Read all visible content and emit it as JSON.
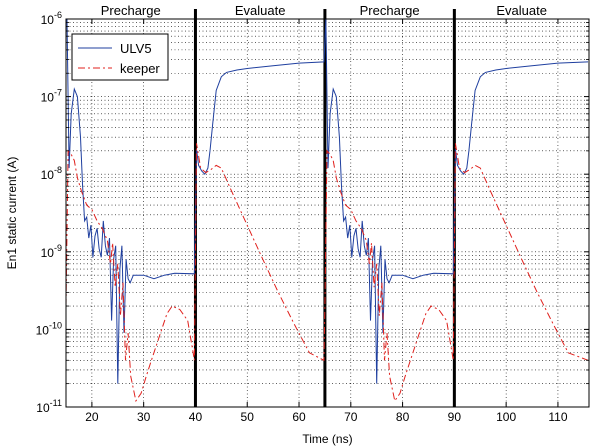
{
  "chart_data": {
    "type": "line",
    "xlabel": "Time (ns)",
    "ylabel": "En1   static current (A)",
    "xlim": [
      15,
      116
    ],
    "ylim": [
      1e-11,
      1e-06
    ],
    "yscale": "log",
    "grid": true,
    "legend_position": "top-left",
    "x_ticks": [
      20,
      30,
      40,
      50,
      60,
      70,
      80,
      90,
      100,
      110
    ],
    "y_ticks": [
      {
        "value": 1e-11,
        "base": "10",
        "exp": "-11"
      },
      {
        "value": 1e-10,
        "base": "10",
        "exp": "-10"
      },
      {
        "value": 1e-09,
        "base": "10",
        "exp": "-9"
      },
      {
        "value": 1e-08,
        "base": "10",
        "exp": "-8"
      },
      {
        "value": 1e-07,
        "base": "10",
        "exp": "-7"
      },
      {
        "value": 1e-06,
        "base": "10",
        "exp": "-6"
      }
    ],
    "phase_boundaries": [
      40,
      65,
      90
    ],
    "phases": [
      {
        "label": "Precharge",
        "x": 27.5
      },
      {
        "label": "Evaluate",
        "x": 52.5
      },
      {
        "label": "Precharge",
        "x": 77.5
      },
      {
        "label": "Evaluate",
        "x": 103
      }
    ],
    "series": [
      {
        "name": "ULV5",
        "color": "#1f3f9f",
        "style": "solid",
        "points": [
          [
            15.2,
            1e-06
          ],
          [
            15.6,
            1.2e-08
          ],
          [
            16.0,
            6e-08
          ],
          [
            16.6,
            1.25e-07
          ],
          [
            17.2,
            1e-07
          ],
          [
            17.8,
            3e-08
          ],
          [
            18.2,
            7e-09
          ],
          [
            18.6,
            2.5e-09
          ],
          [
            19.0,
            2.8e-09
          ],
          [
            19.4,
            1.5e-09
          ],
          [
            19.8,
            2.2e-09
          ],
          [
            20.2,
            8.5e-10
          ],
          [
            20.6,
            1.6e-09
          ],
          [
            21.0,
            2e-09
          ],
          [
            21.4,
            1.1e-09
          ],
          [
            21.8,
            8.5e-10
          ],
          [
            22.2,
            2.5e-09
          ],
          [
            22.6,
            1.2e-09
          ],
          [
            23.0,
            9e-10
          ],
          [
            23.4,
            1.5e-09
          ],
          [
            23.8,
            1.3e-10
          ],
          [
            24.2,
            8e-10
          ],
          [
            24.6,
            1.2e-09
          ],
          [
            25.0,
            2e-11
          ],
          [
            25.4,
            6e-10
          ],
          [
            25.8,
            1.2e-09
          ],
          [
            26.2,
            9e-11
          ],
          [
            26.6,
            8e-10
          ],
          [
            27.0,
            4.5e-10
          ],
          [
            27.4,
            4e-10
          ],
          [
            28.0,
            5e-10
          ],
          [
            30.0,
            5e-10
          ],
          [
            32.0,
            4.5e-10
          ],
          [
            34.0,
            5e-10
          ],
          [
            36.0,
            5.3e-10
          ],
          [
            39.8,
            5.2e-10
          ],
          [
            40.2,
            2.1e-08
          ],
          [
            40.6,
            1.3e-08
          ],
          [
            41.2,
            1.1e-08
          ],
          [
            41.8,
            1e-08
          ],
          [
            42.4,
            1.2e-08
          ],
          [
            42.8,
            2e-08
          ],
          [
            43.4,
            5e-08
          ],
          [
            44.0,
            1.2e-07
          ],
          [
            45.0,
            1.8e-07
          ],
          [
            46.0,
            2.05e-07
          ],
          [
            48.0,
            2.2e-07
          ],
          [
            50.0,
            2.3e-07
          ],
          [
            55.0,
            2.5e-07
          ],
          [
            60.0,
            2.7e-07
          ],
          [
            64.8,
            2.8e-07
          ],
          [
            65.2,
            1e-06
          ],
          [
            65.6,
            1.2e-08
          ],
          [
            66.0,
            6e-08
          ],
          [
            66.6,
            1.25e-07
          ],
          [
            67.2,
            1e-07
          ],
          [
            67.8,
            3e-08
          ],
          [
            68.2,
            7e-09
          ],
          [
            68.6,
            2.5e-09
          ],
          [
            69.0,
            2.8e-09
          ],
          [
            69.4,
            1.5e-09
          ],
          [
            69.8,
            2.2e-09
          ],
          [
            70.2,
            8.5e-10
          ],
          [
            70.6,
            1.6e-09
          ],
          [
            71.0,
            2e-09
          ],
          [
            71.4,
            1.1e-09
          ],
          [
            71.8,
            8.5e-10
          ],
          [
            72.2,
            2.5e-09
          ],
          [
            72.6,
            1.2e-09
          ],
          [
            73.0,
            9e-10
          ],
          [
            73.4,
            1.5e-09
          ],
          [
            73.8,
            1.3e-10
          ],
          [
            74.2,
            8e-10
          ],
          [
            74.6,
            1.2e-09
          ],
          [
            75.0,
            2e-11
          ],
          [
            75.4,
            6e-10
          ],
          [
            75.8,
            1.2e-09
          ],
          [
            76.2,
            9e-11
          ],
          [
            76.6,
            8e-10
          ],
          [
            77.0,
            4.5e-10
          ],
          [
            77.4,
            4e-10
          ],
          [
            78.0,
            5e-10
          ],
          [
            80.0,
            5e-10
          ],
          [
            82.0,
            4.5e-10
          ],
          [
            84.0,
            5e-10
          ],
          [
            86.0,
            5.3e-10
          ],
          [
            89.8,
            5.2e-10
          ],
          [
            90.2,
            2.1e-08
          ],
          [
            90.6,
            1.3e-08
          ],
          [
            91.2,
            1.1e-08
          ],
          [
            91.8,
            1e-08
          ],
          [
            92.4,
            1.2e-08
          ],
          [
            92.8,
            2e-08
          ],
          [
            93.4,
            5e-08
          ],
          [
            94.0,
            1.2e-07
          ],
          [
            95.0,
            1.8e-07
          ],
          [
            96.0,
            2.05e-07
          ],
          [
            98.0,
            2.2e-07
          ],
          [
            100.0,
            2.3e-07
          ],
          [
            105.0,
            2.5e-07
          ],
          [
            110.0,
            2.7e-07
          ],
          [
            115.8,
            2.8e-07
          ]
        ]
      },
      {
        "name": "keeper",
        "color": "#e0201c",
        "style": "dashdot",
        "points": [
          [
            15.0,
            2e-10
          ],
          [
            15.4,
            2e-08
          ],
          [
            16.0,
            1.8e-08
          ],
          [
            16.6,
            1.5e-08
          ],
          [
            17.2,
            9e-09
          ],
          [
            18.0,
            6e-09
          ],
          [
            19.0,
            4e-09
          ],
          [
            20.0,
            3.5e-09
          ],
          [
            21.0,
            2.5e-09
          ],
          [
            22.0,
            2e-09
          ],
          [
            23.0,
            1.4e-09
          ],
          [
            23.6,
            7e-10
          ],
          [
            24.0,
            1.3e-09
          ],
          [
            24.5,
            3.5e-10
          ],
          [
            25.0,
            7e-10
          ],
          [
            25.5,
            1.5e-10
          ],
          [
            26.0,
            4e-10
          ],
          [
            26.5,
            4e-11
          ],
          [
            27.0,
            9e-11
          ],
          [
            27.5,
            2.5e-11
          ],
          [
            28.5,
            1.2e-11
          ],
          [
            29.5,
            1.5e-11
          ],
          [
            30.5,
            2.5e-11
          ],
          [
            31.5,
            4e-11
          ],
          [
            33.0,
            8e-11
          ],
          [
            34.5,
            1.6e-10
          ],
          [
            35.5,
            2e-10
          ],
          [
            37.0,
            1.8e-10
          ],
          [
            38.5,
            1.3e-10
          ],
          [
            39.8,
            4e-11
          ],
          [
            40.2,
            2.5e-08
          ],
          [
            41.0,
            1.2e-08
          ],
          [
            42.0,
            1.05e-08
          ],
          [
            43.0,
            1.15e-08
          ],
          [
            44.0,
            1.3e-08
          ],
          [
            45.0,
            1.2e-08
          ],
          [
            47.0,
            6e-09
          ],
          [
            50.0,
            2.2e-09
          ],
          [
            53.0,
            8e-10
          ],
          [
            56.0,
            3e-10
          ],
          [
            59.0,
            1.2e-10
          ],
          [
            62.0,
            5e-11
          ],
          [
            64.8,
            4e-11
          ],
          [
            65.0,
            2e-10
          ],
          [
            65.4,
            2e-08
          ],
          [
            66.0,
            1.8e-08
          ],
          [
            66.6,
            1.5e-08
          ],
          [
            67.2,
            9e-09
          ],
          [
            68.0,
            6e-09
          ],
          [
            69.0,
            4e-09
          ],
          [
            70.0,
            3.5e-09
          ],
          [
            71.0,
            2.5e-09
          ],
          [
            72.0,
            2e-09
          ],
          [
            73.0,
            1.4e-09
          ],
          [
            73.6,
            7e-10
          ],
          [
            74.0,
            1.3e-09
          ],
          [
            74.5,
            3.5e-10
          ],
          [
            75.0,
            7e-10
          ],
          [
            75.5,
            1.5e-10
          ],
          [
            76.0,
            4e-10
          ],
          [
            76.5,
            4e-11
          ],
          [
            77.0,
            9e-11
          ],
          [
            77.5,
            2.5e-11
          ],
          [
            78.5,
            1.2e-11
          ],
          [
            79.5,
            1.5e-11
          ],
          [
            80.5,
            2.5e-11
          ],
          [
            81.5,
            4e-11
          ],
          [
            83.0,
            8e-11
          ],
          [
            84.5,
            1.6e-10
          ],
          [
            85.5,
            2e-10
          ],
          [
            87.0,
            1.8e-10
          ],
          [
            88.5,
            1.3e-10
          ],
          [
            89.8,
            4e-11
          ],
          [
            90.2,
            2.5e-08
          ],
          [
            91.0,
            1.2e-08
          ],
          [
            92.0,
            1.05e-08
          ],
          [
            93.0,
            1.15e-08
          ],
          [
            94.0,
            1.3e-08
          ],
          [
            95.0,
            1.2e-08
          ],
          [
            97.0,
            6e-09
          ],
          [
            100.0,
            2.2e-09
          ],
          [
            103.0,
            8e-10
          ],
          [
            106.0,
            3e-10
          ],
          [
            109.0,
            1.2e-10
          ],
          [
            112.0,
            5e-11
          ],
          [
            115.8,
            4e-11
          ]
        ]
      }
    ]
  }
}
